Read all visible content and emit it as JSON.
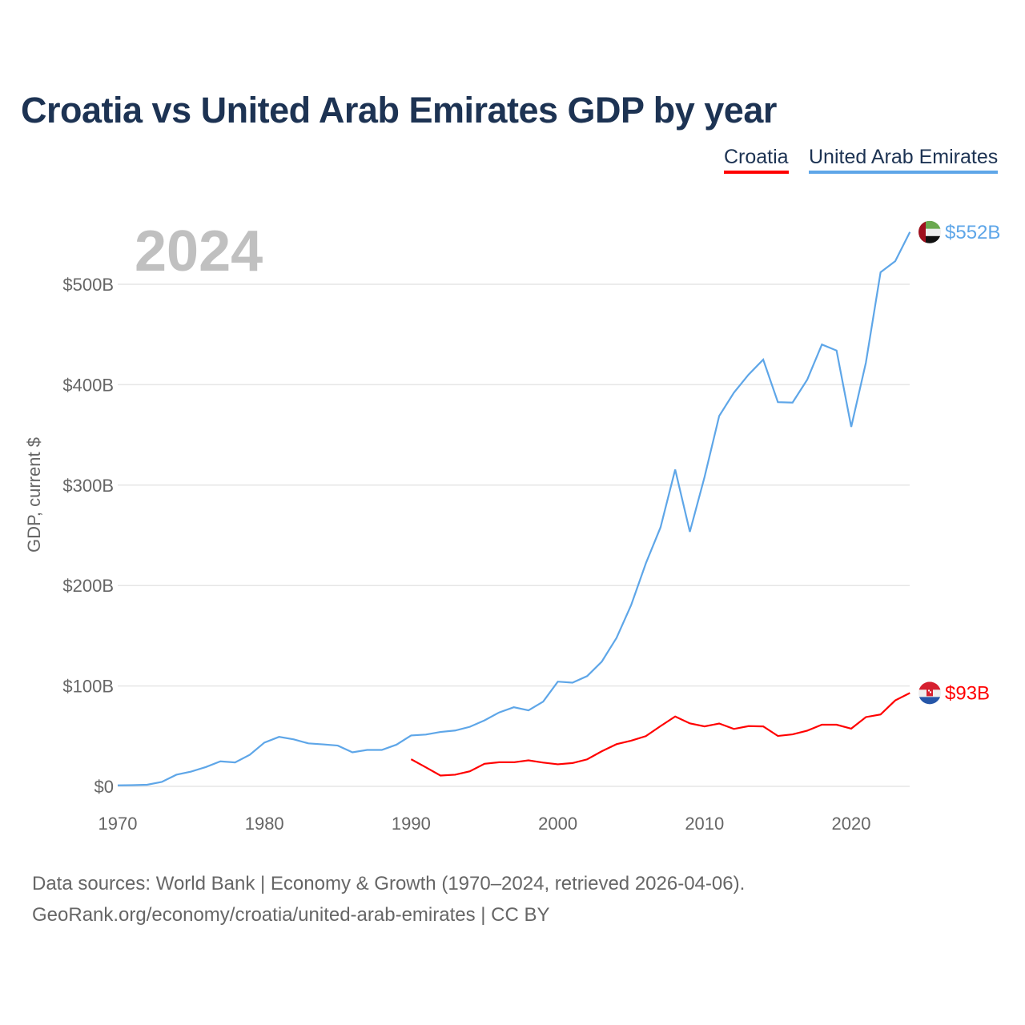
{
  "chart_data": {
    "type": "line",
    "title": "Croatia vs United Arab Emirates GDP by year",
    "ylabel": "GDP, current $",
    "xlabel": "",
    "year_label": "2024",
    "xlim": [
      1970,
      2024
    ],
    "ylim": [
      0,
      560
    ],
    "x_ticks": [
      {
        "v": 1970,
        "l": "1970"
      },
      {
        "v": 1980,
        "l": "1980"
      },
      {
        "v": 1990,
        "l": "1990"
      },
      {
        "v": 2000,
        "l": "2000"
      },
      {
        "v": 2010,
        "l": "2010"
      },
      {
        "v": 2020,
        "l": "2020"
      }
    ],
    "y_ticks": [
      {
        "v": 0,
        "l": "$0"
      },
      {
        "v": 100,
        "l": "$100B"
      },
      {
        "v": 200,
        "l": "$200B"
      },
      {
        "v": 300,
        "l": "$300B"
      },
      {
        "v": 400,
        "l": "$400B"
      },
      {
        "v": 500,
        "l": "$500B"
      }
    ],
    "grid": true,
    "legend_placement": "top-right",
    "series": [
      {
        "name": "Croatia",
        "color": "#ff0000",
        "end_label": "$93B",
        "start": 1990,
        "values": [
          27,
          19,
          10.8,
          11.6,
          15,
          22.5,
          24,
          24,
          25.9,
          23.7,
          22,
          23.2,
          26.9,
          35,
          42,
          45.5,
          50,
          60,
          69.6,
          62.7,
          59.7,
          62.6,
          57.2,
          60,
          59.7,
          50.2,
          51.8,
          55.5,
          61.4,
          61.4,
          57.5,
          69,
          71.6,
          85.6,
          93
        ]
      },
      {
        "name": "United Arab Emirates",
        "color": "#5ea6e8",
        "end_label": "$552B",
        "start": 1970,
        "values": [
          1.0,
          1.2,
          1.6,
          4.4,
          11.6,
          14.7,
          19.2,
          24.9,
          23.8,
          31.4,
          43.6,
          49.3,
          46.8,
          42.8,
          41.8,
          40.6,
          33.9,
          36.3,
          36.3,
          41.5,
          50.7,
          51.6,
          54.2,
          55.6,
          59.3,
          65.7,
          73.6,
          78.8,
          75.7,
          84.4,
          104.3,
          103.3,
          109.8,
          124.3,
          147.8,
          180.6,
          222.1,
          257.9,
          315.5,
          253.5,
          308,
          368.9,
          392,
          410,
          425,
          382.6,
          382.2,
          405,
          440,
          434,
          358,
          422,
          512,
          523,
          552
        ]
      }
    ]
  },
  "source": {
    "line1": "Data sources: World Bank | Economy & Growth (1970–2024, retrieved 2026-04-06).",
    "line2": "GeoRank.org/economy/croatia/united-arab-emirates | CC BY"
  }
}
